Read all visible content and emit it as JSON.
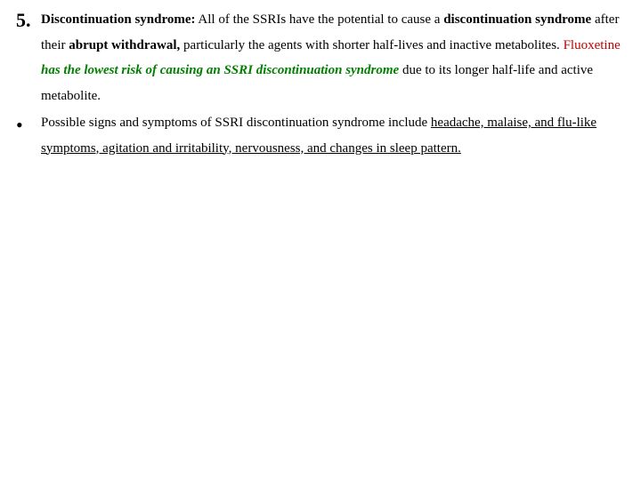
{
  "item5": {
    "marker": "5.",
    "heading": "Discontinuation syndrome:",
    "t1": " All of the SSRIs have the potential to cause a ",
    "t2": "discontinuation syndrome",
    "t3": " after their ",
    "t4": "abrupt withdrawal,",
    "t5": " particularly the agents with shorter half-lives and inactive metabolites. ",
    "t6": "Fluoxetine",
    "t7": " has the lowest risk of causing an SSRI discontinuation syndrome",
    "t8": " due to its longer half-life and active metabolite."
  },
  "bullet1": {
    "marker": "•",
    "t1": "Possible signs and symptoms of SSRI discontinuation syndrome include ",
    "t2": "headache, malaise, and flu-like symptoms, agitation and irritability, nervousness, and changes in sleep pattern."
  }
}
